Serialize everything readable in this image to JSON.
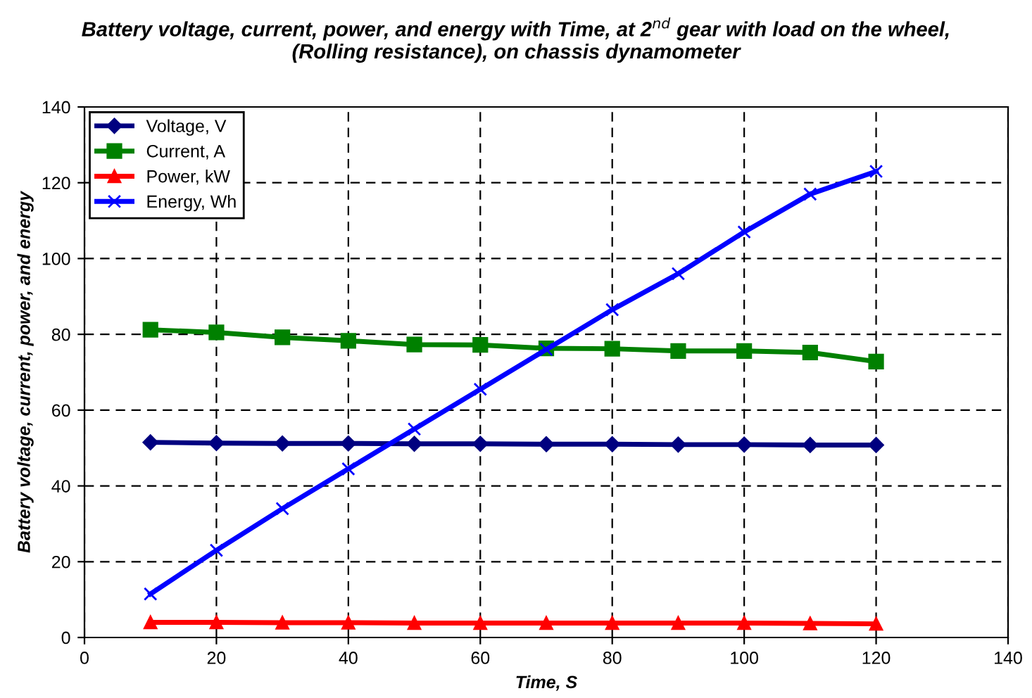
{
  "chart_data": {
    "type": "line",
    "title": "Battery voltage, current, power, and energy with Time, at 2$^{nd}$ gear with load on the wheel,\n(Rolling resistance), on chassis dynamometer",
    "xlabel": "Time, S",
    "ylabel": "Battery voltage, current, power, and energy",
    "x": [
      10,
      20,
      30,
      40,
      50,
      60,
      70,
      80,
      90,
      100,
      110,
      120
    ],
    "series": [
      {
        "name": "Voltage, V",
        "color": "#000080",
        "marker": "diamond",
        "values": [
          51.5,
          51.3,
          51.2,
          51.2,
          51.1,
          51.1,
          51.0,
          51.0,
          50.9,
          50.9,
          50.8,
          50.8
        ]
      },
      {
        "name": "Current, A",
        "color": "#008000",
        "marker": "square",
        "values": [
          81.2,
          80.5,
          79.2,
          78.3,
          77.3,
          77.2,
          76.3,
          76.2,
          75.6,
          75.6,
          75.2,
          72.8
        ]
      },
      {
        "name": "Power, kW",
        "color": "#ff0000",
        "marker": "triangle",
        "values": [
          4.0,
          4.0,
          3.9,
          3.9,
          3.8,
          3.8,
          3.8,
          3.8,
          3.8,
          3.8,
          3.7,
          3.6
        ]
      },
      {
        "name": "Energy, Wh",
        "color": "#0000ff",
        "marker": "cross",
        "values": [
          11.5,
          23,
          34,
          44.5,
          55,
          65.5,
          76,
          86.5,
          96,
          107,
          117,
          123
        ]
      }
    ],
    "xlim": [
      0,
      140
    ],
    "xticks": [
      0,
      20,
      40,
      60,
      80,
      100,
      120,
      140
    ],
    "ylim": [
      0,
      140
    ],
    "yticks": [
      0,
      20,
      40,
      60,
      80,
      100,
      120,
      140
    ],
    "grid": true,
    "legend": "top left",
    "line_style": "solid"
  }
}
